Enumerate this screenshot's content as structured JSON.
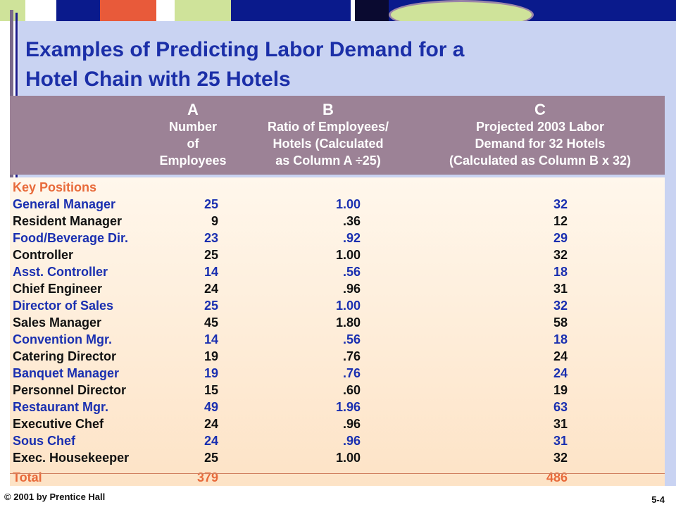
{
  "slide": {
    "title_line1": "Examples of Predicting Labor Demand for a",
    "title_line2": "Hotel Chain with 25 Hotels"
  },
  "table": {
    "columns": [
      {
        "letter": "A",
        "desc": [
          "Number",
          "of",
          "Employees"
        ]
      },
      {
        "letter": "B",
        "desc": [
          "Ratio of Employees/",
          "Hotels (Calculated",
          "as Column A ÷25)"
        ]
      },
      {
        "letter": "C",
        "desc": [
          "Projected 2003 Labor",
          "Demand for 32 Hotels",
          "(Calculated as Column B x 32)"
        ]
      }
    ],
    "section_label": "Key Positions",
    "rows": [
      {
        "position": "General Manager",
        "a": "25",
        "b": "1.00",
        "c": "32"
      },
      {
        "position": "Resident Manager",
        "a": "9",
        "b": ".36",
        "c": "12"
      },
      {
        "position": "Food/Beverage Dir.",
        "a": "23",
        "b": ".92",
        "c": "29"
      },
      {
        "position": "Controller",
        "a": "25",
        "b": "1.00",
        "c": "32"
      },
      {
        "position": "Asst. Controller",
        "a": "14",
        "b": ".56",
        "c": "18"
      },
      {
        "position": "Chief Engineer",
        "a": "24",
        "b": ".96",
        "c": "31"
      },
      {
        "position": "Director of Sales",
        "a": "25",
        "b": "1.00",
        "c": "32"
      },
      {
        "position": "Sales Manager",
        "a": "45",
        "b": "1.80",
        "c": "58"
      },
      {
        "position": "Convention Mgr.",
        "a": "14",
        "b": ".56",
        "c": "18"
      },
      {
        "position": "Catering Director",
        "a": "19",
        "b": ".76",
        "c": "24"
      },
      {
        "position": "Banquet Manager",
        "a": "19",
        "b": ".76",
        "c": "24"
      },
      {
        "position": "Personnel Director",
        "a": "15",
        "b": ".60",
        "c": "19"
      },
      {
        "position": "Restaurant Mgr.",
        "a": "49",
        "b": "1.96",
        "c": "63"
      },
      {
        "position": "Executive Chef",
        "a": "24",
        "b": ".96",
        "c": "31"
      },
      {
        "position": "Sous Chef",
        "a": "24",
        "b": ".96",
        "c": "31"
      },
      {
        "position": "Exec. Housekeeper",
        "a": "25",
        "b": "1.00",
        "c": "32"
      }
    ],
    "total": {
      "label": "Total",
      "a": "379",
      "c": "486"
    }
  },
  "footer": {
    "copyright": "© 2001 by Prentice Hall",
    "page": "5-4"
  },
  "colors": {
    "title": "#1b2fa8",
    "header_band": "#9c8296",
    "row_blue": "#1a2fb0",
    "row_black": "#111111",
    "accent_orange": "#e86a3a"
  }
}
